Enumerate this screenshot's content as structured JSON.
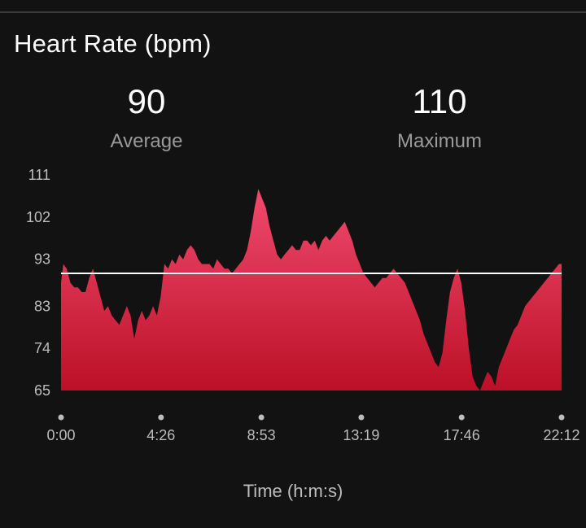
{
  "card": {
    "title": "Heart Rate (bpm)"
  },
  "stats": {
    "average": {
      "value": "90",
      "label": "Average"
    },
    "maximum": {
      "value": "110",
      "label": "Maximum"
    }
  },
  "chart_data": {
    "type": "area",
    "title": "Heart Rate (bpm)",
    "xlabel": "Time (h:m:s)",
    "ylabel": "",
    "x_unit_seconds": true,
    "ylim": [
      65,
      111
    ],
    "xlim": [
      0,
      1332
    ],
    "y_ticks": [
      "111",
      "102",
      "93",
      "83",
      "74",
      "65"
    ],
    "y_tick_values": [
      111,
      102,
      93,
      83,
      74,
      65
    ],
    "x_ticks": [
      "0:00",
      "4:26",
      "8:53",
      "13:19",
      "17:46",
      "22:12"
    ],
    "x_tick_values": [
      0,
      266,
      533,
      799,
      1066,
      1332
    ],
    "average_line": 90,
    "colors": {
      "fill_top": "#f04a6e",
      "fill_bottom": "#bc1027",
      "average_line": "#ffffff"
    },
    "series": [
      {
        "x": [
          0,
          6,
          15,
          25,
          35,
          45,
          55,
          65,
          75,
          85,
          95,
          105,
          115,
          125,
          135,
          145,
          155,
          165,
          175,
          185,
          195,
          205,
          215,
          225,
          235,
          245,
          255,
          265,
          275,
          285,
          295,
          305,
          315,
          325,
          335,
          345,
          355,
          365,
          375,
          385,
          395,
          405,
          415,
          425,
          435,
          445,
          455,
          465,
          475,
          485,
          495,
          505,
          515,
          525,
          535,
          545,
          555,
          565,
          575,
          585,
          595,
          605,
          615,
          625,
          635,
          645,
          655,
          665,
          675,
          685,
          695,
          705,
          715,
          725,
          735,
          745,
          755,
          765,
          775,
          785,
          795,
          805,
          815,
          825,
          835,
          845,
          855,
          865,
          875,
          885,
          895,
          905,
          915,
          925,
          935,
          945,
          955,
          965,
          975,
          985,
          995,
          1005,
          1015,
          1025,
          1035,
          1045,
          1055,
          1065,
          1075,
          1085,
          1095,
          1105,
          1115,
          1125,
          1135,
          1145,
          1155,
          1165,
          1175,
          1185,
          1195,
          1205,
          1215,
          1225,
          1235,
          1245,
          1255,
          1265,
          1275,
          1285,
          1295,
          1305,
          1315,
          1325,
          1332
        ],
        "y": [
          88,
          92,
          91,
          88,
          87,
          87,
          86,
          86,
          89,
          91,
          88,
          85,
          82,
          83,
          81,
          80,
          79,
          81,
          83,
          81,
          76,
          80,
          82,
          80,
          81,
          83,
          81,
          85,
          92,
          91,
          93,
          92,
          94,
          93,
          95,
          96,
          95,
          93,
          92,
          92,
          92,
          91,
          93,
          92,
          91,
          91,
          90,
          91,
          92,
          93,
          95,
          99,
          104,
          108,
          106,
          104,
          100,
          97,
          94,
          93,
          94,
          95,
          96,
          95,
          95,
          97,
          97,
          96,
          97,
          95,
          97,
          98,
          97,
          98,
          99,
          100,
          101,
          99,
          97,
          94,
          92,
          90,
          89,
          88,
          87,
          88,
          89,
          89,
          90,
          91,
          90,
          89,
          88,
          86,
          84,
          82,
          80,
          77,
          75,
          73,
          71,
          70,
          73,
          80,
          86,
          89,
          91,
          88,
          82,
          74,
          68,
          66,
          65,
          67,
          69,
          68,
          66,
          70,
          72,
          74,
          76,
          78,
          79,
          81,
          83,
          84,
          85,
          86,
          87,
          88,
          89,
          90,
          91,
          92,
          92
        ]
      }
    ]
  }
}
